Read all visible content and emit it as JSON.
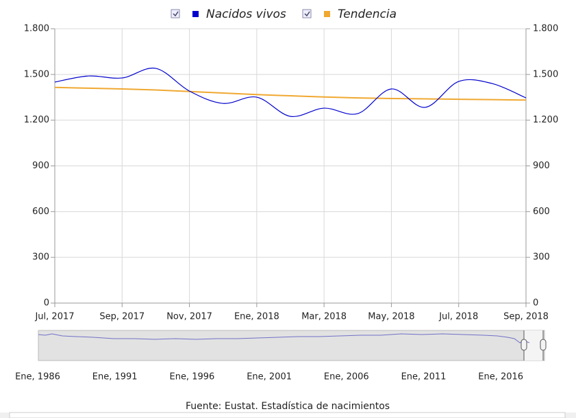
{
  "chart_data": {
    "type": "line",
    "categories": [
      "Jul, 2017",
      null,
      "Sep, 2017",
      null,
      "Nov, 2017",
      null,
      "Ene, 2018",
      null,
      "Mar, 2018",
      null,
      "May, 2018",
      null,
      "Jul, 2018",
      null,
      "Sep, 2018"
    ],
    "series": [
      {
        "name": "Nacidos vivos",
        "color": "#0000cc",
        "values": [
          1450,
          1490,
          1477,
          1540,
          1391,
          1310,
          1351,
          1225,
          1279,
          1243,
          1405,
          1284,
          1454,
          1440,
          1346
        ]
      },
      {
        "name": "Tendencia",
        "color": "#f0a830",
        "values": [
          1415,
          1410,
          1405,
          1398,
          1388,
          1378,
          1368,
          1360,
          1352,
          1346,
          1342,
          1340,
          1337,
          1335,
          1332
        ]
      }
    ],
    "ylim": [
      0,
      1800
    ],
    "yticks": [
      0,
      300,
      600,
      900,
      {
        "value": 1200,
        "label": "1.200"
      },
      {
        "value": 1500,
        "label": "1.500"
      },
      {
        "value": 1800,
        "label": "1.800"
      }
    ],
    "y2lim": [
      0,
      1800
    ],
    "y2ticks": [
      0,
      300,
      600,
      900,
      {
        "value": 1200,
        "label": "1.200"
      },
      {
        "value": 1500,
        "label": "1.500"
      },
      {
        "value": 1800,
        "label": "1.800"
      }
    ],
    "grid": true,
    "legend": "top",
    "navigator_labels": [
      "Ene, 1986",
      "Ene, 1991",
      "Ene, 1996",
      "Ene, 2001",
      "Ene, 2006",
      "Ene, 2011",
      "Ene, 2016"
    ],
    "source": "Fuente: Eustat. Estadística de nacimientos"
  }
}
